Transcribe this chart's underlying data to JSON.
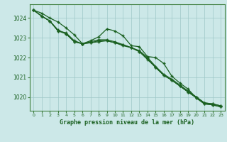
{
  "title": "Graphe pression niveau de la mer (hPa)",
  "background_color": "#cce8e8",
  "grid_color": "#9fc8c8",
  "line_color": "#1a6020",
  "xlim": [
    -0.5,
    23.5
  ],
  "ylim": [
    1019.3,
    1024.7
  ],
  "yticks": [
    1020,
    1021,
    1022,
    1023,
    1024
  ],
  "xticks": [
    0,
    1,
    2,
    3,
    4,
    5,
    6,
    7,
    8,
    9,
    10,
    11,
    12,
    13,
    14,
    15,
    16,
    17,
    18,
    19,
    20,
    21,
    22,
    23
  ],
  "series": [
    [
      1024.4,
      1024.25,
      1024.0,
      1023.8,
      1023.5,
      1023.15,
      1022.7,
      1022.85,
      1023.05,
      1023.45,
      1023.35,
      1023.1,
      1022.6,
      1022.55,
      1022.05,
      1022.0,
      1021.7,
      1021.05,
      1020.7,
      1020.4,
      1019.95,
      1019.65,
      1019.6,
      1019.5
    ],
    [
      1024.4,
      1024.1,
      1023.85,
      1023.4,
      1023.2,
      1022.8,
      1022.7,
      1022.75,
      1022.8,
      1022.85,
      1022.75,
      1022.65,
      1022.5,
      1022.3,
      1021.9,
      1021.5,
      1021.1,
      1020.85,
      1020.55,
      1020.25,
      1020.0,
      1019.7,
      1019.65,
      1019.55
    ],
    [
      1024.4,
      1024.1,
      1023.85,
      1023.35,
      1023.25,
      1022.85,
      1022.7,
      1022.8,
      1022.9,
      1022.9,
      1022.8,
      1022.65,
      1022.5,
      1022.35,
      1022.0,
      1021.55,
      1021.15,
      1020.9,
      1020.6,
      1020.3,
      1020.0,
      1019.7,
      1019.65,
      1019.55
    ],
    [
      1024.4,
      1024.1,
      1023.85,
      1023.35,
      1023.2,
      1022.8,
      1022.7,
      1022.75,
      1022.85,
      1022.85,
      1022.75,
      1022.6,
      1022.5,
      1022.3,
      1021.95,
      1021.5,
      1021.1,
      1020.85,
      1020.55,
      1020.25,
      1019.95,
      1019.65,
      1019.6,
      1019.5
    ]
  ]
}
